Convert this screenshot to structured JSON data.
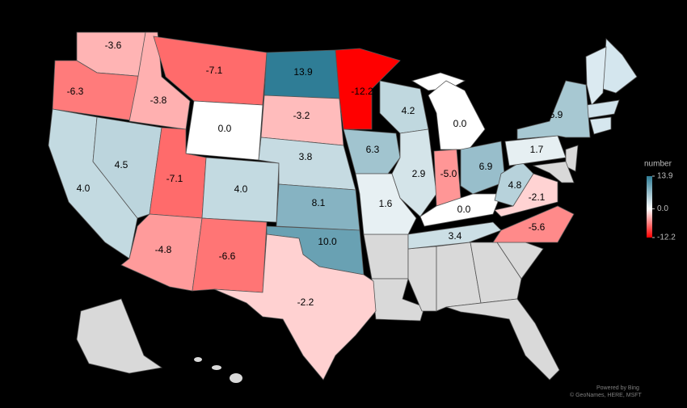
{
  "map": {
    "type": "choropleth",
    "values": [
      -3.6,
      -6.3,
      4.0,
      4.5,
      -3.8,
      -7.1,
      0.0,
      -7.1,
      4.0,
      -4.8,
      -6.6,
      13.9,
      -3.2,
      3.8,
      8.1,
      10.0,
      -2.2,
      -12.2,
      6.3,
      1.6,
      4.2,
      2.9,
      0.0,
      -5.0,
      6.9,
      0.0,
      3.4,
      4.8,
      -2.1,
      -5.6,
      1.7,
      5.9
    ],
    "value_labels": [
      "-3.6",
      "-6.3",
      "4.0",
      "4.5",
      "-3.8",
      "-7.1",
      "0.0",
      "-7.1",
      "4.0",
      "-4.8",
      "-6.6",
      "13.9",
      "-3.2",
      "3.8",
      "8.1",
      "10.0",
      "-2.2",
      "-12.2",
      "6.3",
      "1.6",
      "4.2",
      "2.9",
      "0.0",
      "-5.0",
      "6.9",
      "0.0",
      "3.4",
      "4.8",
      "-2.1",
      "-5.6",
      "1.7",
      "5.9"
    ],
    "colors": [
      "#ff0000",
      "#ffffff",
      "#2f7d96"
    ],
    "no_data_color": "#d9d9d9",
    "legend_title": "number",
    "legend_ticks": [
      13.9,
      {
        "value": 0,
        "label": "0.0"
      },
      -12.2
    ],
    "attribution": [
      "Powered by Bing",
      "© GeoNames, HERE, MSFT"
    ]
  }
}
